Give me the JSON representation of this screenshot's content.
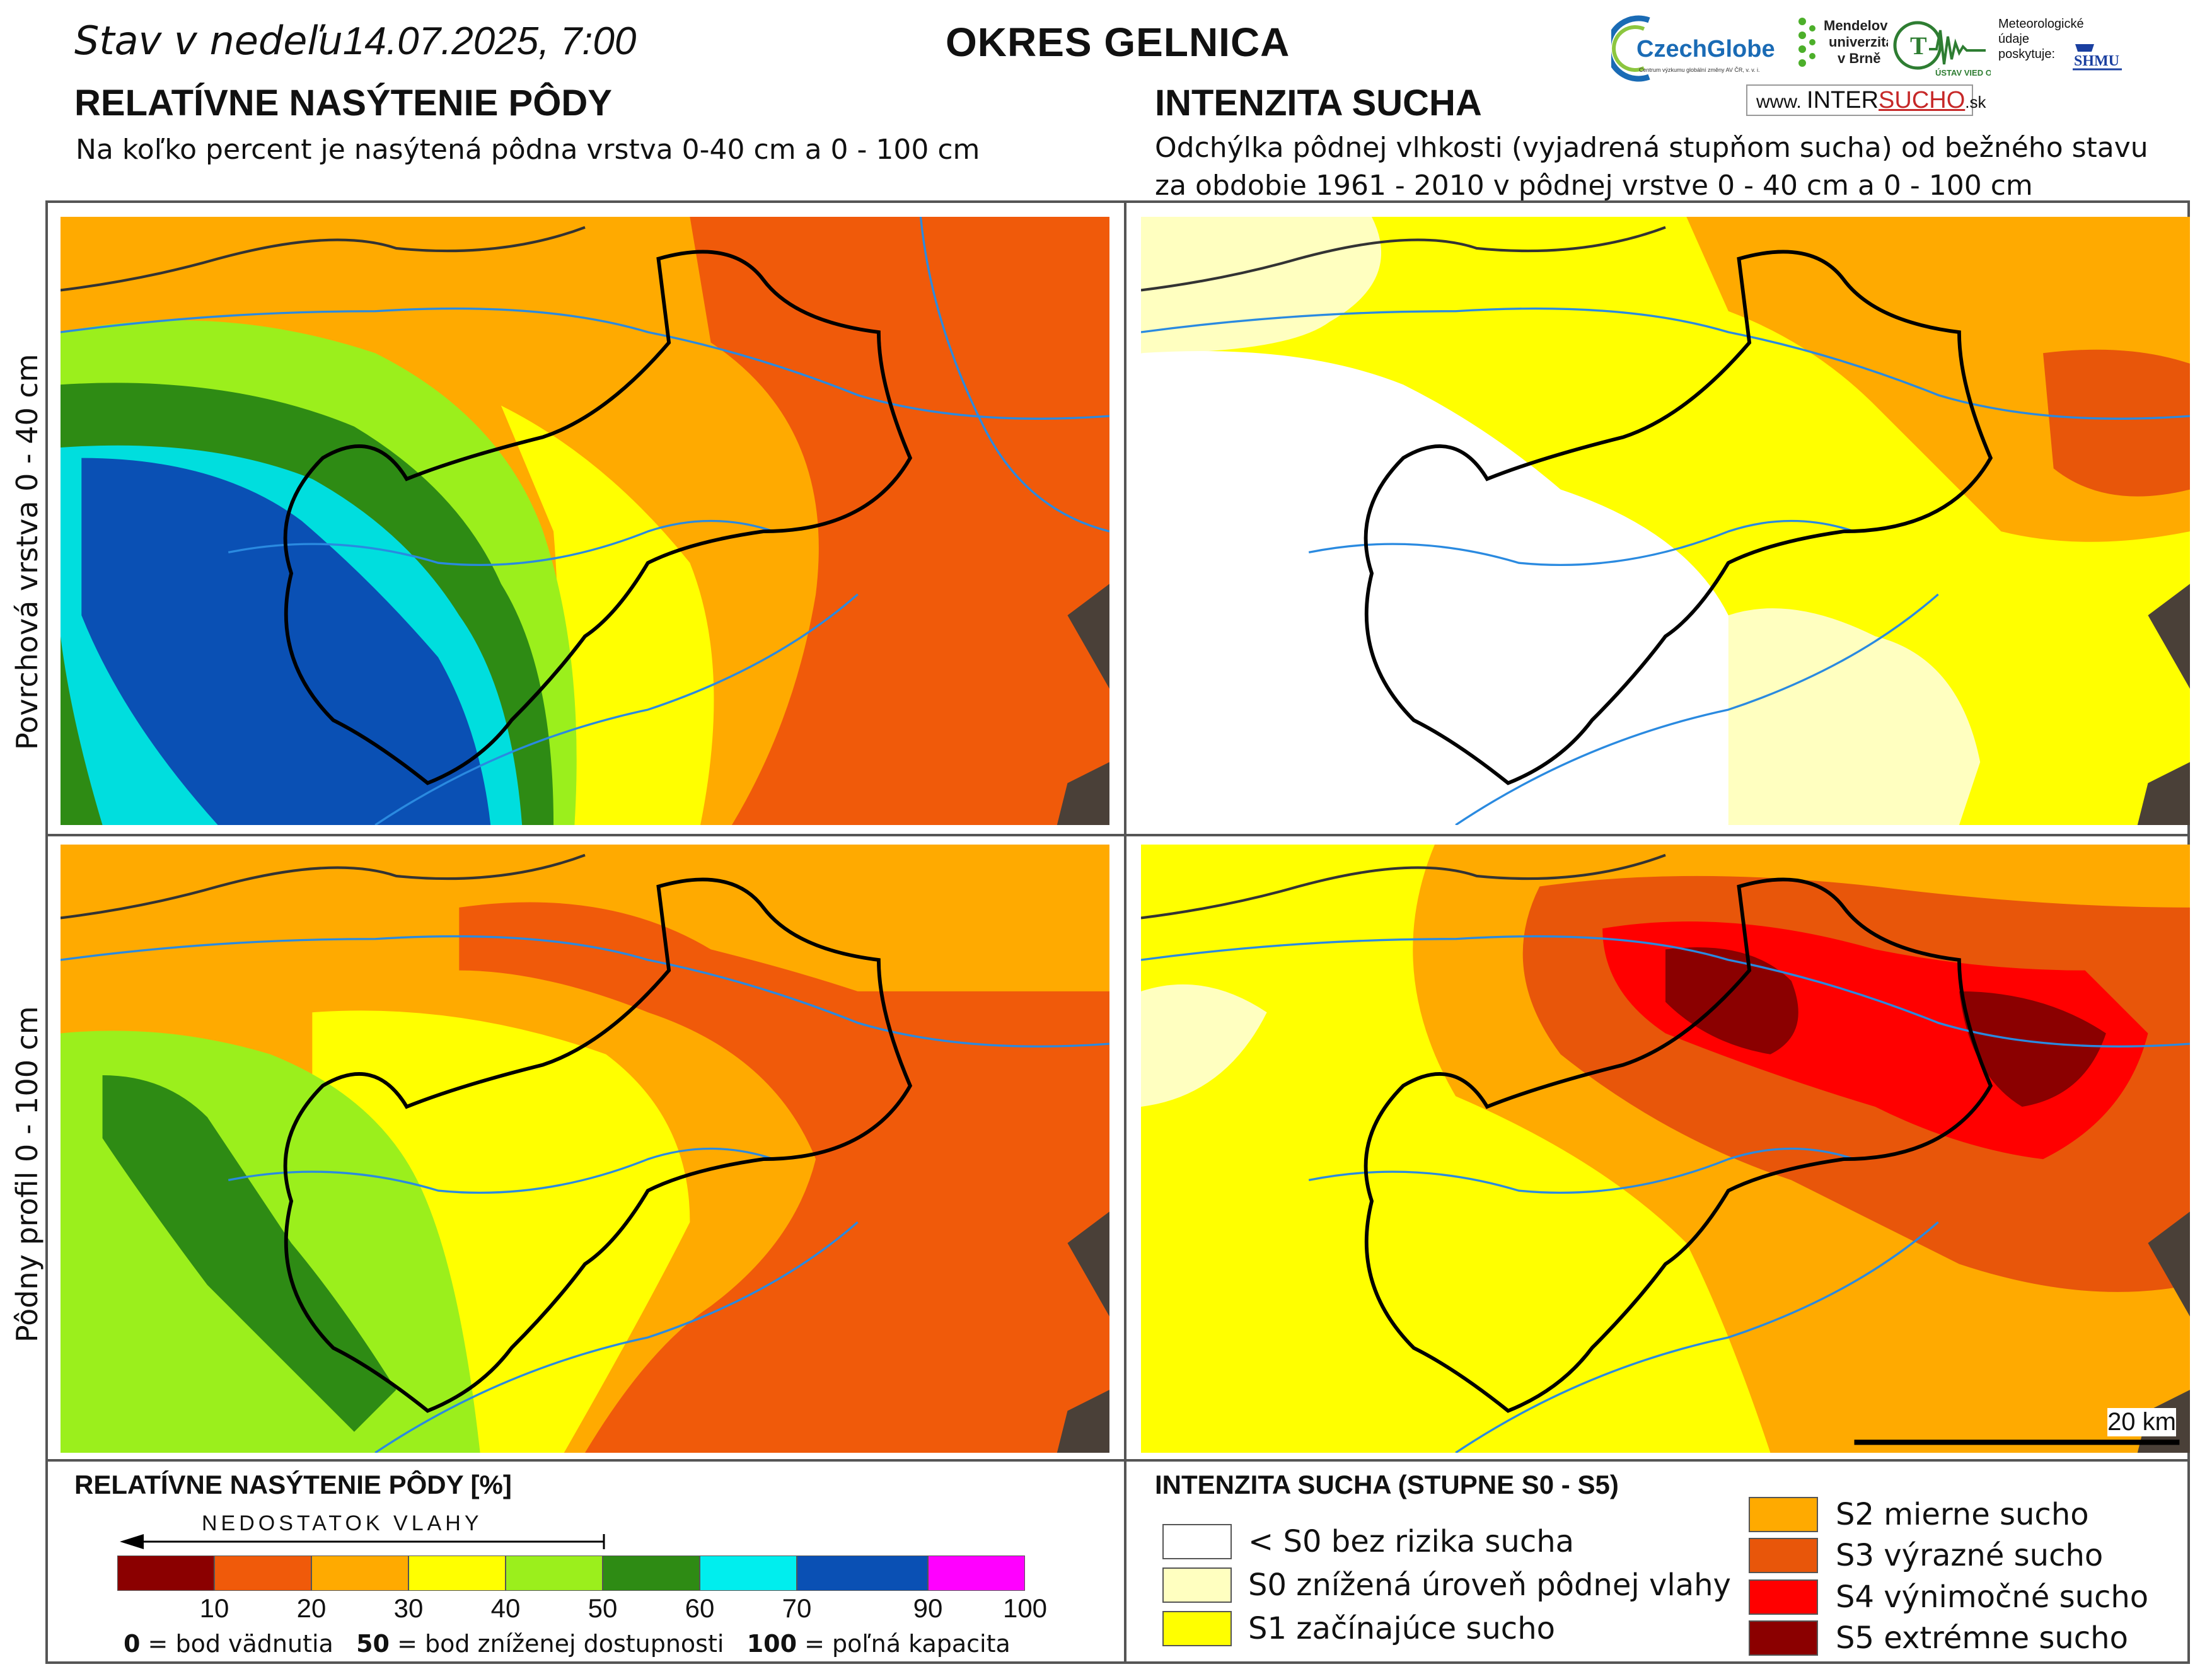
{
  "header": {
    "status_date": "Stav v nedeľu",
    "date_time": "14.07.2025, 7:00",
    "district": "OKRES  GELNICA",
    "left_heading": "RELATÍVNE NASÝTENIE PÔDY",
    "left_subheading": "Na koľko percent je nasýtená pôdna vrstva 0-40 cm a 0 - 100 cm",
    "right_heading": "INTENZITA SUCHA",
    "right_subheading_line1": "Odchýlka pôdnej vlhkosti (vyjadrená stupňom sucha) od bežného stavu",
    "right_subheading_line2": "za obdobie 1961 - 2010 v pôdnej vrstve 0 - 40 cm a 0 - 100 cm"
  },
  "logos": {
    "czechglobe": "CzechGlobe",
    "czechglobe_sub": "Centrum výzkumu globální změny AV ČR, v. v. i.",
    "mendel_line1": "Mendelova",
    "mendel_line2": "univerzita",
    "mendel_line3": "v Brně",
    "uvz": "ÚSTAV VIED O ZEMI",
    "meteo_line1": "Meteorologické",
    "meteo_line2": "údaje",
    "meteo_line3": "poskytuje:",
    "shmu": "SHMU",
    "intersucho_prefix": "www.",
    "intersucho_a": "INTER",
    "intersucho_b": "SUCHO",
    "intersucho_suffix": ".sk"
  },
  "rows": {
    "top": "Povrchová vrstva 0 - 40 cm",
    "bottom": "Pôdny profil 0 - 100 cm"
  },
  "scale_bar": "20 km",
  "saturation_legend": {
    "title": "RELATÍVNE NASÝTENIE PÔDY [%]",
    "arrow_label": "NEDOSTATOK VLAHY",
    "bins": [
      {
        "from": 0,
        "to": 10,
        "color": "#8b0000"
      },
      {
        "from": 10,
        "to": 20,
        "color": "#f05a0a"
      },
      {
        "from": 20,
        "to": 30,
        "color": "#ffaa00"
      },
      {
        "from": 30,
        "to": 40,
        "color": "#ffff00"
      },
      {
        "from": 40,
        "to": 50,
        "color": "#9bef1c"
      },
      {
        "from": 50,
        "to": 60,
        "color": "#2e8b14"
      },
      {
        "from": 60,
        "to": 70,
        "color": "#00eeee"
      },
      {
        "from": 70,
        "to": 90,
        "color": "#0a50b4"
      },
      {
        "from": 90,
        "to": 100,
        "color": "#ff00ff"
      }
    ],
    "ticks": [
      "10",
      "20",
      "30",
      "40",
      "50",
      "60",
      "70",
      "90",
      "100"
    ],
    "note_0_value": "0",
    "note_0_text": "= bod vädnutia",
    "note_50_value": "50",
    "note_50_text": "= bod zníženej dostupnosti",
    "note_100_value": "100",
    "note_100_text": "= poľná kapacita"
  },
  "drought_legend": {
    "title": "INTENZITA SUCHA (STUPNE S0 - S5)",
    "items": [
      {
        "label": "< S0 bez rizika sucha",
        "color": "#ffffff"
      },
      {
        "label": "S0 znížená úroveň pôdnej vlahy",
        "color": "#ffffc0"
      },
      {
        "label": "S1 začínajúce sucho",
        "color": "#ffff00"
      },
      {
        "label": "S2 mierne sucho",
        "color": "#ffaa00"
      },
      {
        "label": "S3 výrazné sucho",
        "color": "#e8560a"
      },
      {
        "label": "S4 výnimočné sucho",
        "color": "#ff0000"
      },
      {
        "label": "S5 extrémne sucho",
        "color": "#8b0000"
      }
    ]
  },
  "colors": {
    "river": "#2a8ae0",
    "district_border": "#000000",
    "country_border": "#333333",
    "neighbour": "#4a4038"
  }
}
